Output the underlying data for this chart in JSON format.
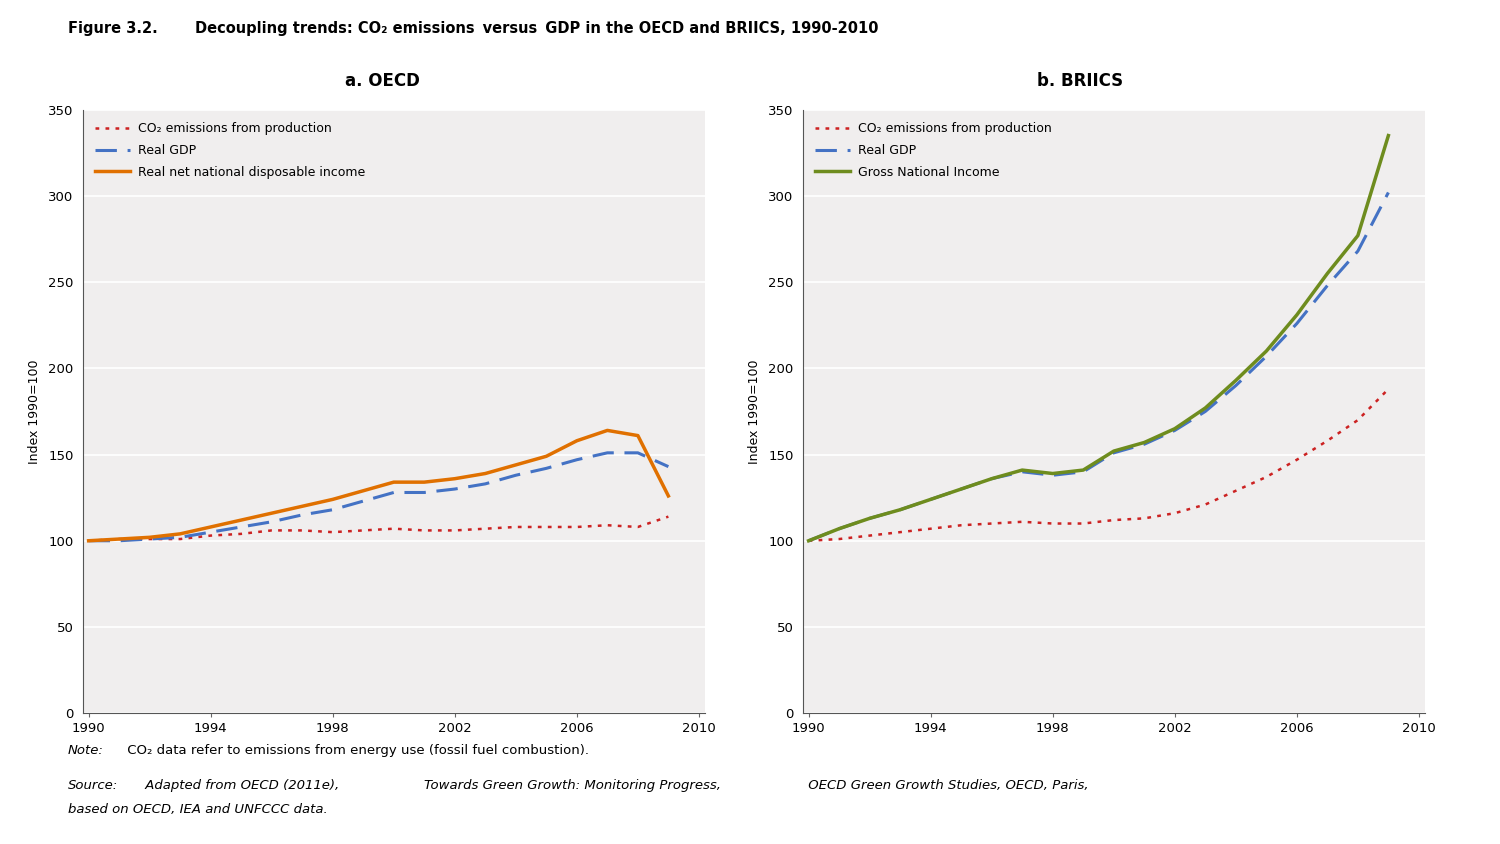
{
  "title_prefix": "Figure 3.2.",
  "title_main": "Decoupling trends: CO₂ emissions  versus  GDP in the OECD and BRIICS, 1990-2010",
  "subtitle_a": "a. OECD",
  "subtitle_b": "b. BRIICS",
  "ylabel": "Index 1990=100",
  "years": [
    1990,
    1991,
    1992,
    1993,
    1994,
    1995,
    1996,
    1997,
    1998,
    1999,
    2000,
    2001,
    2002,
    2003,
    2004,
    2005,
    2006,
    2007,
    2008,
    2009
  ],
  "oecd_co2": [
    100,
    101,
    101,
    101,
    103,
    104,
    106,
    106,
    105,
    106,
    107,
    106,
    106,
    107,
    108,
    108,
    108,
    109,
    108,
    114
  ],
  "oecd_gdp": [
    100,
    100,
    101,
    102,
    105,
    108,
    111,
    115,
    118,
    123,
    128,
    128,
    130,
    133,
    138,
    142,
    147,
    151,
    151,
    143
  ],
  "oecd_rndi": [
    100,
    101,
    102,
    104,
    108,
    112,
    116,
    120,
    124,
    129,
    134,
    134,
    136,
    139,
    144,
    149,
    158,
    164,
    161,
    126
  ],
  "briics_co2": [
    100,
    101,
    103,
    105,
    107,
    109,
    110,
    111,
    110,
    110,
    112,
    113,
    116,
    121,
    129,
    137,
    147,
    158,
    170,
    188
  ],
  "briics_gdp": [
    100,
    107,
    113,
    118,
    124,
    130,
    136,
    140,
    138,
    140,
    151,
    156,
    164,
    175,
    190,
    207,
    226,
    248,
    268,
    302
  ],
  "briics_gni": [
    100,
    107,
    113,
    118,
    124,
    130,
    136,
    141,
    139,
    141,
    152,
    157,
    165,
    177,
    193,
    210,
    231,
    255,
    277,
    335
  ],
  "co2_color": "#cc2222",
  "gdp_color": "#4472c4",
  "oecd_income_color": "#e07000",
  "briics_gni_color": "#6e8c1e",
  "background_color": "#ffffff",
  "plot_bg_color": "#f0eeee",
  "note_text": "Note:  CO₂ data refer to emissions from energy use (fossil fuel combustion).",
  "source_line1": "Source:  Adapted from OECD (2011e), ",
  "source_italic": "Towards Green Growth: Monitoring Progress,",
  "source_line1b": " OECD Green Growth Studies, OECD, Paris,",
  "source_line2": "based on OECD, IEA and UNFCCC data.",
  "ylim": [
    0,
    350
  ],
  "yticks": [
    0,
    50,
    100,
    150,
    200,
    250,
    300,
    350
  ],
  "xticks": [
    1990,
    1994,
    1998,
    2002,
    2006,
    2010
  ]
}
